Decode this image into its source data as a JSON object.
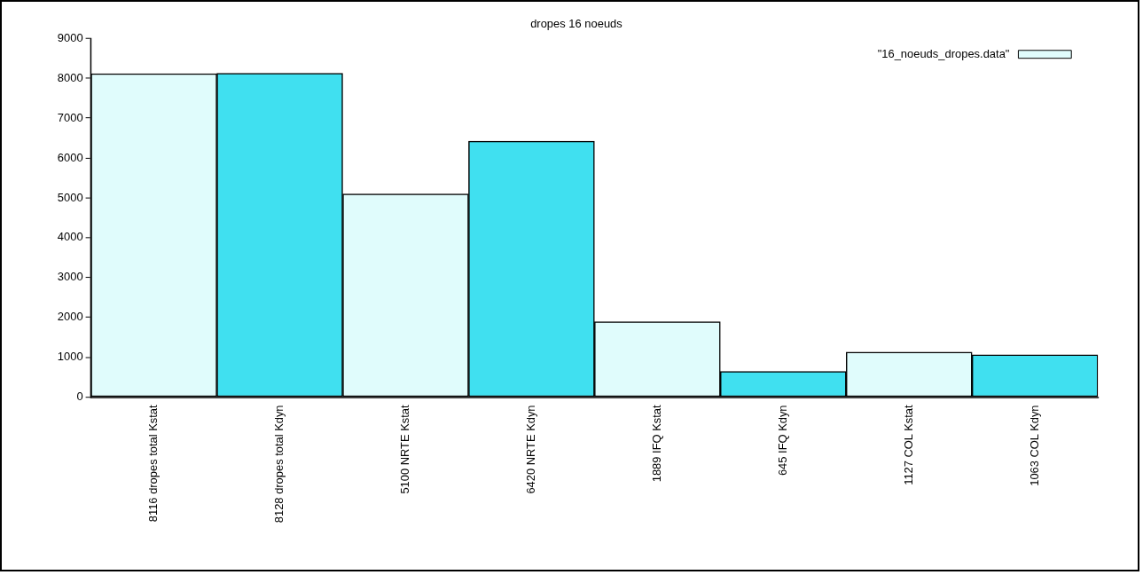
{
  "chart_data": {
    "type": "bar",
    "title": "dropes 16 noeuds",
    "categories": [
      "8116 dropes total Kstat",
      "8128 dropes total Kdyn",
      "5100 NRTE Kstat",
      "6420 NRTE Kdyn",
      "1889 IFQ Kstat",
      "645 IFQ Kdyn",
      "1127 COL Kstat",
      "1063 COL Kdyn"
    ],
    "series": [
      {
        "name": "\"16_noeuds_dropes.data\"",
        "colors": [
          "#e0fcfc",
          "#40e0f0",
          "#e0fcfc",
          "#40e0f0",
          "#e0fcfc",
          "#40e0f0",
          "#e0fcfc",
          "#40e0f0"
        ],
        "values": [
          8116,
          8128,
          5100,
          6420,
          1889,
          645,
          1127,
          1063
        ]
      }
    ],
    "ylim": [
      0,
      9000
    ],
    "yticks": [
      0,
      1000,
      2000,
      3000,
      4000,
      5000,
      6000,
      7000,
      8000,
      9000
    ],
    "legend": "top right",
    "grid": false
  }
}
